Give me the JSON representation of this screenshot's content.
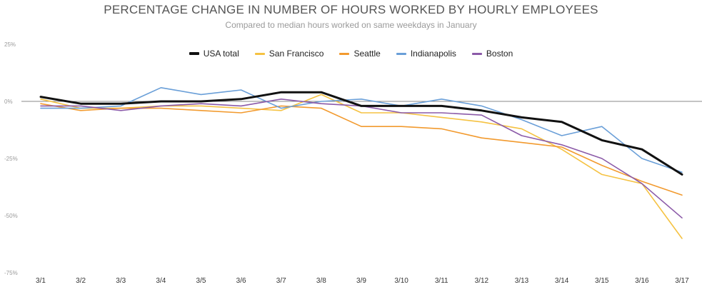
{
  "chart_data": {
    "type": "line",
    "title": "PERCENTAGE CHANGE IN NUMBER OF HOURS WORKED BY HOURLY EMPLOYEES",
    "subtitle": "Compared to median hours worked on same weekdays in January",
    "xlabel": "",
    "ylabel": "",
    "ylim": [
      -75,
      25
    ],
    "yticks": [
      "25%",
      "0%",
      "-25%",
      "-50%",
      "-75%"
    ],
    "ytick_values": [
      25,
      0,
      -25,
      -50,
      -75
    ],
    "legend_position": "top-center",
    "grid": false,
    "categories": [
      "3/1",
      "3/2",
      "3/3",
      "3/4",
      "3/5",
      "3/6",
      "3/7",
      "3/8",
      "3/9",
      "3/10",
      "3/11",
      "3/12",
      "3/13",
      "3/14",
      "3/15",
      "3/16",
      "3/17"
    ],
    "series": [
      {
        "name": "San Francisco",
        "color": "#f5c242",
        "width": 1.6,
        "values": [
          1,
          -3,
          -3,
          -2,
          -2,
          -3,
          -4,
          3,
          -5,
          -5,
          -7,
          -9,
          -12,
          -21,
          -32,
          -36,
          -60
        ]
      },
      {
        "name": "Seattle",
        "color": "#f29a2e",
        "width": 1.6,
        "values": [
          -1,
          -4,
          -3,
          -3,
          -4,
          -5,
          -2,
          -3,
          -11,
          -11,
          -12,
          -16,
          -18,
          -20,
          -28,
          -35,
          -41
        ]
      },
      {
        "name": "Indianapolis",
        "color": "#6a9fd8",
        "width": 1.6,
        "values": [
          -3,
          -3,
          -2,
          6,
          3,
          5,
          -3,
          0,
          1,
          -2,
          1,
          -2,
          -8,
          -15,
          -11,
          -25,
          -31
        ]
      },
      {
        "name": "Boston",
        "color": "#8b5aa8",
        "width": 1.6,
        "values": [
          -2,
          -2,
          -4,
          -2,
          -1,
          -2,
          1,
          -1,
          -2,
          -5,
          -5,
          -6,
          -15,
          -19,
          -25,
          -36,
          -51
        ]
      },
      {
        "name": "USA total",
        "color": "#111111",
        "width": 3,
        "values": [
          2,
          -1,
          -1,
          0,
          0,
          1,
          4,
          4,
          -2,
          -2,
          -2,
          -4,
          -7,
          -9,
          -17,
          -21,
          -32
        ]
      }
    ],
    "legend_order": [
      "USA total",
      "San Francisco",
      "Seattle",
      "Indianapolis",
      "Boston"
    ]
  }
}
